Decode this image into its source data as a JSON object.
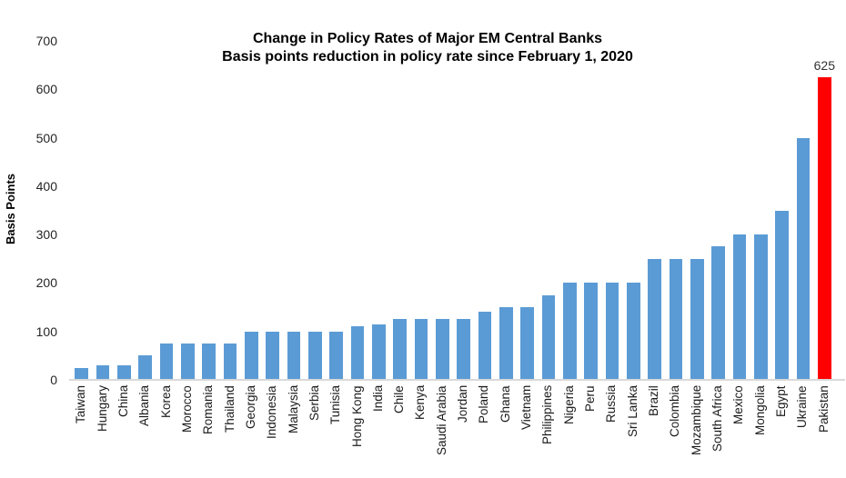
{
  "chart_data": {
    "type": "bar",
    "title": "Change in Policy Rates of Major EM Central Banks",
    "subtitle": "Basis points reduction in policy rate since February 1, 2020",
    "ylabel": "Basis Points",
    "xlabel": "",
    "ylim": [
      0,
      700
    ],
    "y_ticks": [
      0,
      100,
      200,
      300,
      400,
      500,
      600,
      700
    ],
    "grid": false,
    "legend": "none",
    "categories": [
      "Taiwan",
      "Hungary",
      "China",
      "Albania",
      "Korea",
      "Morocco",
      "Romania",
      "Thailand",
      "Georgia",
      "Indonesia",
      "Malaysia",
      "Serbia",
      "Tunisia",
      "Hong Kong",
      "India",
      "Chile",
      "Kenya",
      "Saudi Arabia",
      "Jordan",
      "Poland",
      "Ghana",
      "Vietnam",
      "Philippines",
      "Nigeria",
      "Peru",
      "Russia",
      "Sri Lanka",
      "Brazil",
      "Colombia",
      "Mozambique",
      "South Africa",
      "Mexico",
      "Mongolia",
      "Egypt",
      "Ukraine",
      "Pakistan"
    ],
    "values": [
      25,
      30,
      30,
      50,
      75,
      75,
      75,
      75,
      100,
      100,
      100,
      100,
      100,
      110,
      115,
      125,
      125,
      125,
      125,
      140,
      150,
      150,
      175,
      200,
      200,
      200,
      200,
      250,
      250,
      250,
      275,
      300,
      300,
      350,
      500,
      625
    ],
    "bar_color": "#5B9BD5",
    "highlight_category": "Pakistan",
    "highlight_color": "#FF0000",
    "data_labels": {
      "Pakistan": "625"
    },
    "axis_line_color": "#D9D9D9"
  }
}
